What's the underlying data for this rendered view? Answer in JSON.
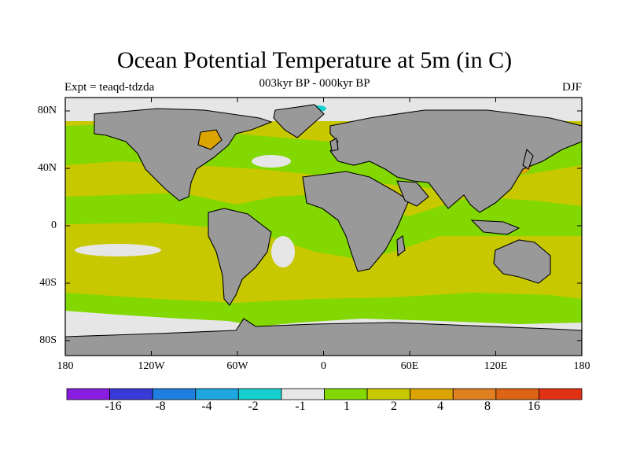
{
  "title": "Ocean Potential Temperature at 5m (in C)",
  "experiment_label": "Expt = teaqd-tdzda",
  "period_label": "003kyr BP - 000kyr BP",
  "season_label": "DJF",
  "lat_ticks": [
    "80N",
    "40N",
    "0",
    "40S",
    "80S"
  ],
  "lon_ticks": [
    "180",
    "120W",
    "60W",
    "0",
    "60E",
    "120E",
    "180"
  ],
  "colorbar": {
    "colors": [
      "#8a1ee0",
      "#3a3ad8",
      "#1f7fe0",
      "#1ea6e0",
      "#16d0d0",
      "#e6e6e6",
      "#82d800",
      "#c8c800",
      "#dca400",
      "#e0801e",
      "#dc6414",
      "#e03214"
    ],
    "labels": [
      "-16",
      "-8",
      "-4",
      "-2",
      "-1",
      "1",
      "2",
      "4",
      "8",
      "16"
    ]
  },
  "map_colors": {
    "land": "#999999",
    "ice_shelf": "#e6e6e6",
    "coast": "#000000"
  }
}
